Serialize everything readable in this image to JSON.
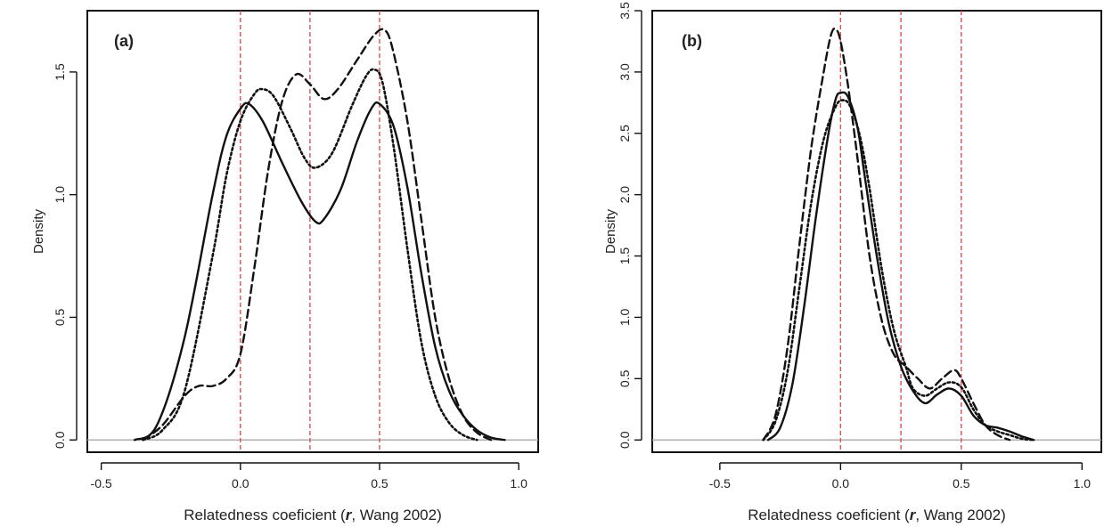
{
  "chart_data": [
    {
      "type": "line",
      "panel_label": "(a)",
      "xlabel_pre": "Relatedness coeficient (",
      "xlabel_r": "r",
      "xlabel_post": ", Wang 2002)",
      "ylabel": "Density",
      "xlim": [
        -0.55,
        1.07
      ],
      "ylim": [
        -0.05,
        1.75
      ],
      "xticks": [
        -0.5,
        0.0,
        0.5,
        1.0
      ],
      "xtick_labels": [
        "-0.5",
        "0.0",
        "0.5",
        "1.0"
      ],
      "yticks": [
        0.0,
        0.5,
        1.0,
        1.5
      ],
      "ytick_labels": [
        "0.0",
        "0.5",
        "1.0",
        "1.5"
      ],
      "vlines": [
        0.0,
        0.25,
        0.5
      ],
      "hline": 0.0,
      "series": [
        {
          "style": "solid",
          "points": [
            [
              -0.38,
              0.0
            ],
            [
              -0.3,
              0.06
            ],
            [
              -0.2,
              0.42
            ],
            [
              -0.1,
              1.0
            ],
            [
              -0.05,
              1.24
            ],
            [
              0.0,
              1.35
            ],
            [
              0.03,
              1.37
            ],
            [
              0.08,
              1.3
            ],
            [
              0.15,
              1.13
            ],
            [
              0.22,
              0.97
            ],
            [
              0.27,
              0.89
            ],
            [
              0.3,
              0.9
            ],
            [
              0.36,
              1.02
            ],
            [
              0.42,
              1.22
            ],
            [
              0.47,
              1.35
            ],
            [
              0.5,
              1.37
            ],
            [
              0.55,
              1.28
            ],
            [
              0.6,
              1.03
            ],
            [
              0.65,
              0.68
            ],
            [
              0.7,
              0.38
            ],
            [
              0.75,
              0.2
            ],
            [
              0.8,
              0.1
            ],
            [
              0.85,
              0.04
            ],
            [
              0.9,
              0.01
            ],
            [
              0.95,
              0.0
            ]
          ]
        },
        {
          "style": "dotted",
          "points": [
            [
              -0.35,
              0.0
            ],
            [
              -0.28,
              0.04
            ],
            [
              -0.2,
              0.2
            ],
            [
              -0.1,
              0.75
            ],
            [
              -0.05,
              1.08
            ],
            [
              0.0,
              1.3
            ],
            [
              0.05,
              1.41
            ],
            [
              0.08,
              1.43
            ],
            [
              0.12,
              1.4
            ],
            [
              0.18,
              1.27
            ],
            [
              0.23,
              1.15
            ],
            [
              0.27,
              1.11
            ],
            [
              0.33,
              1.17
            ],
            [
              0.4,
              1.36
            ],
            [
              0.45,
              1.48
            ],
            [
              0.48,
              1.51
            ],
            [
              0.51,
              1.46
            ],
            [
              0.55,
              1.2
            ],
            [
              0.6,
              0.78
            ],
            [
              0.65,
              0.4
            ],
            [
              0.7,
              0.18
            ],
            [
              0.75,
              0.07
            ],
            [
              0.8,
              0.02
            ],
            [
              0.85,
              0.0
            ]
          ]
        },
        {
          "style": "dashed",
          "points": [
            [
              -0.35,
              0.0
            ],
            [
              -0.28,
              0.06
            ],
            [
              -0.2,
              0.18
            ],
            [
              -0.15,
              0.22
            ],
            [
              -0.1,
              0.22
            ],
            [
              -0.05,
              0.25
            ],
            [
              0.0,
              0.35
            ],
            [
              0.05,
              0.7
            ],
            [
              0.1,
              1.1
            ],
            [
              0.15,
              1.38
            ],
            [
              0.2,
              1.49
            ],
            [
              0.25,
              1.45
            ],
            [
              0.3,
              1.39
            ],
            [
              0.35,
              1.43
            ],
            [
              0.42,
              1.55
            ],
            [
              0.48,
              1.65
            ],
            [
              0.52,
              1.67
            ],
            [
              0.55,
              1.58
            ],
            [
              0.6,
              1.3
            ],
            [
              0.65,
              0.9
            ],
            [
              0.7,
              0.5
            ],
            [
              0.75,
              0.25
            ],
            [
              0.8,
              0.1
            ],
            [
              0.85,
              0.03
            ],
            [
              0.9,
              0.0
            ]
          ]
        }
      ]
    },
    {
      "type": "line",
      "panel_label": "(b)",
      "xlabel_pre": "Relatedness coeficient (",
      "xlabel_r": "r",
      "xlabel_post": ", Wang 2002)",
      "ylabel": "Density",
      "xlim": [
        -0.78,
        1.08
      ],
      "ylim": [
        -0.1,
        3.5
      ],
      "xticks": [
        -0.5,
        0.0,
        0.5,
        1.0
      ],
      "xtick_labels": [
        "-0.5",
        "0.0",
        "0.5",
        "1.0"
      ],
      "yticks": [
        0.0,
        0.5,
        1.0,
        1.5,
        2.0,
        2.5,
        3.0,
        3.5
      ],
      "ytick_labels": [
        "0.0",
        "0.5",
        "1.0",
        "1.5",
        "2.0",
        "2.5",
        "3.0",
        "3.5"
      ],
      "vlines": [
        0.0,
        0.25,
        0.5
      ],
      "hline": 0.0,
      "series": [
        {
          "style": "solid",
          "points": [
            [
              -0.3,
              0.0
            ],
            [
              -0.25,
              0.1
            ],
            [
              -0.2,
              0.45
            ],
            [
              -0.15,
              1.1
            ],
            [
              -0.1,
              1.85
            ],
            [
              -0.05,
              2.5
            ],
            [
              -0.02,
              2.78
            ],
            [
              0.0,
              2.83
            ],
            [
              0.03,
              2.8
            ],
            [
              0.07,
              2.55
            ],
            [
              0.1,
              2.15
            ],
            [
              0.15,
              1.5
            ],
            [
              0.2,
              0.95
            ],
            [
              0.25,
              0.6
            ],
            [
              0.3,
              0.4
            ],
            [
              0.35,
              0.3
            ],
            [
              0.4,
              0.37
            ],
            [
              0.45,
              0.42
            ],
            [
              0.5,
              0.36
            ],
            [
              0.55,
              0.2
            ],
            [
              0.6,
              0.12
            ],
            [
              0.65,
              0.1
            ],
            [
              0.7,
              0.07
            ],
            [
              0.75,
              0.03
            ],
            [
              0.8,
              0.0
            ]
          ]
        },
        {
          "style": "dotted",
          "points": [
            [
              -0.32,
              0.0
            ],
            [
              -0.27,
              0.15
            ],
            [
              -0.22,
              0.55
            ],
            [
              -0.17,
              1.25
            ],
            [
              -0.12,
              1.95
            ],
            [
              -0.07,
              2.45
            ],
            [
              -0.02,
              2.72
            ],
            [
              0.01,
              2.77
            ],
            [
              0.04,
              2.72
            ],
            [
              0.08,
              2.48
            ],
            [
              0.12,
              2.05
            ],
            [
              0.17,
              1.4
            ],
            [
              0.22,
              0.9
            ],
            [
              0.27,
              0.6
            ],
            [
              0.3,
              0.42
            ],
            [
              0.35,
              0.36
            ],
            [
              0.4,
              0.42
            ],
            [
              0.45,
              0.47
            ],
            [
              0.5,
              0.43
            ],
            [
              0.55,
              0.25
            ],
            [
              0.6,
              0.12
            ],
            [
              0.65,
              0.07
            ],
            [
              0.7,
              0.04
            ],
            [
              0.75,
              0.01
            ],
            [
              0.8,
              0.0
            ]
          ]
        },
        {
          "style": "dashed",
          "points": [
            [
              -0.32,
              0.0
            ],
            [
              -0.27,
              0.2
            ],
            [
              -0.22,
              0.75
            ],
            [
              -0.17,
              1.6
            ],
            [
              -0.12,
              2.4
            ],
            [
              -0.07,
              3.0
            ],
            [
              -0.04,
              3.3
            ],
            [
              -0.02,
              3.35
            ],
            [
              0.0,
              3.25
            ],
            [
              0.03,
              2.9
            ],
            [
              0.07,
              2.3
            ],
            [
              0.12,
              1.5
            ],
            [
              0.17,
              0.98
            ],
            [
              0.22,
              0.7
            ],
            [
              0.27,
              0.6
            ],
            [
              0.32,
              0.5
            ],
            [
              0.37,
              0.42
            ],
            [
              0.42,
              0.5
            ],
            [
              0.47,
              0.57
            ],
            [
              0.5,
              0.5
            ],
            [
              0.55,
              0.3
            ],
            [
              0.6,
              0.12
            ],
            [
              0.65,
              0.04
            ],
            [
              0.7,
              0.0
            ]
          ]
        }
      ]
    }
  ]
}
